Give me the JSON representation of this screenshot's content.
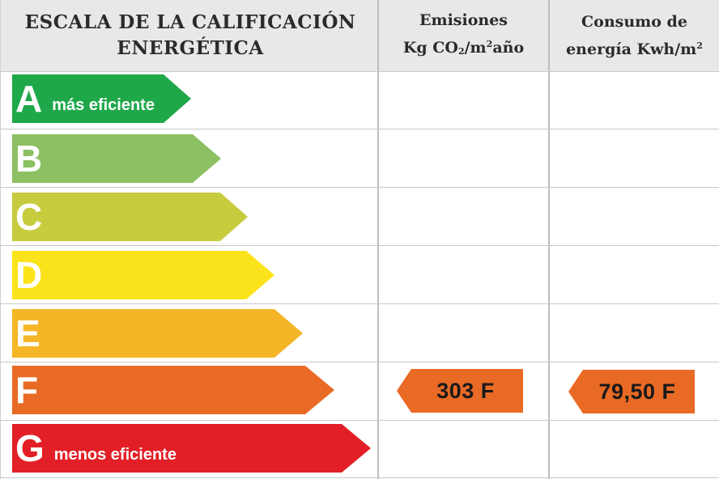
{
  "header": {
    "scale_title_line1": "ESCALA DE LA CALIFICACIÓN",
    "scale_title_line2": "ENERGÉTICA",
    "emissions_title": "Emisiones",
    "emissions_unit_prefix": "Kg CO",
    "emissions_unit_sub": "2",
    "emissions_unit_mid": "/m",
    "emissions_unit_sup": "2",
    "emissions_unit_suffix": "año",
    "consumption_title": "Consumo de",
    "consumption_unit_prefix": "energía Kwh/m",
    "consumption_unit_sup": "2"
  },
  "scale": [
    {
      "letter": "A",
      "note": "más eficiente",
      "color": "#1fa84a"
    },
    {
      "letter": "B",
      "note": "",
      "color": "#8cc063"
    },
    {
      "letter": "C",
      "note": "",
      "color": "#c7cc3e"
    },
    {
      "letter": "D",
      "note": "",
      "color": "#fbe31c"
    },
    {
      "letter": "E",
      "note": "",
      "color": "#f4b626"
    },
    {
      "letter": "F",
      "note": "",
      "color": "#e96a25"
    },
    {
      "letter": "G",
      "note": "menos eficiente",
      "color": "#e21f26"
    }
  ],
  "ratings": {
    "emissions": {
      "value": "303 F",
      "class": "F",
      "color": "#e96a25"
    },
    "consumption": {
      "value": "79,50 F",
      "class": "F",
      "color": "#e96a25"
    }
  }
}
